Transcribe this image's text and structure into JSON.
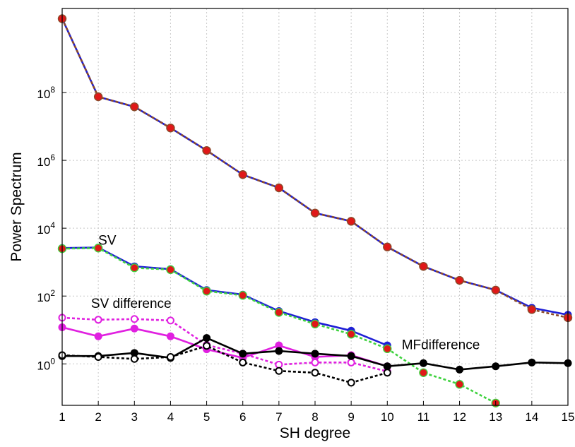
{
  "chart_data": {
    "type": "line",
    "title": "",
    "xlabel": "SH degree",
    "ylabel": "Power Spectrum",
    "y_scale": "log",
    "xlim": [
      1,
      15
    ],
    "ylim": [
      0.06,
      30000000000
    ],
    "grid": true,
    "x_ticks": [
      1,
      2,
      3,
      4,
      5,
      6,
      7,
      8,
      9,
      10,
      11,
      12,
      13,
      14,
      15
    ],
    "y_ticks": [
      {
        "value": 1,
        "base": "10",
        "exp": "0"
      },
      {
        "value": 100,
        "base": "10",
        "exp": "2"
      },
      {
        "value": 10000,
        "base": "10",
        "exp": "4"
      },
      {
        "value": 1000000,
        "base": "10",
        "exp": "6"
      },
      {
        "value": 100000000,
        "base": "10",
        "exp": "8"
      }
    ],
    "annotations": [
      {
        "text": "SV",
        "x": 2.0,
        "y": 3300
      },
      {
        "text": "SV difference",
        "x": 1.8,
        "y": 45
      },
      {
        "text": "MFdifference",
        "x": 10.4,
        "y": 2.7
      }
    ],
    "series": [
      {
        "color": "#1f1fd6",
        "dash": false,
        "marker": "filled",
        "x": [
          1,
          2,
          3,
          4,
          5,
          6,
          7,
          8,
          9,
          10,
          11,
          12,
          13,
          14,
          15
        ],
        "y": [
          15000000000,
          75000000,
          38000000,
          9000000,
          1950000,
          380000,
          155000,
          28000,
          16000,
          2800,
          750,
          290,
          150,
          45,
          28
        ]
      },
      {
        "color": "#8b4a2a",
        "dash": true,
        "marker": "red-dot",
        "x": [
          1,
          2,
          3,
          4,
          5,
          6,
          7,
          8,
          9,
          10,
          11,
          12,
          13,
          14,
          15
        ],
        "y": [
          15000000000,
          75000000,
          38000000,
          9000000,
          1950000,
          380000,
          155000,
          28000,
          16000,
          2800,
          750,
          290,
          150,
          40,
          23
        ]
      },
      {
        "color": "#1f1fd6",
        "dash": false,
        "marker": "filled",
        "x": [
          1,
          2,
          3,
          4,
          5,
          6,
          7,
          8,
          9,
          10
        ],
        "y": [
          2600,
          2700,
          750,
          620,
          150,
          110,
          36,
          17,
          9.5,
          3.5
        ]
      },
      {
        "color": "#3fd23f",
        "dash": true,
        "marker": "red-dot",
        "x": [
          1,
          2,
          3,
          4,
          5,
          6,
          7,
          8,
          9,
          10,
          11,
          12,
          13
        ],
        "y": [
          2500,
          2600,
          680,
          600,
          140,
          105,
          33,
          15,
          7.5,
          2.8,
          0.55,
          0.25,
          0.07
        ]
      },
      {
        "color": "#e020e0",
        "dash": false,
        "marker": "filled",
        "x": [
          1,
          2,
          3,
          4,
          5,
          6,
          7,
          8,
          9,
          10
        ],
        "y": [
          12,
          6.5,
          11,
          6.5,
          2.7,
          1.5,
          3.5,
          1.6,
          1.8,
          0.85
        ]
      },
      {
        "color": "#e020e0",
        "dash": true,
        "marker": "open",
        "x": [
          1,
          2,
          3,
          4,
          5,
          6,
          7,
          8,
          9,
          10
        ],
        "y": [
          23,
          20,
          21,
          19,
          3.6,
          2.0,
          0.95,
          1.1,
          1.1,
          0.6
        ]
      },
      {
        "color": "#000000",
        "dash": false,
        "marker": "filled",
        "x": [
          1,
          2,
          3,
          4,
          5,
          6,
          7,
          8,
          9,
          10,
          11,
          12,
          13,
          14,
          15
        ],
        "y": [
          1.7,
          1.7,
          2.1,
          1.5,
          5.8,
          2.0,
          2.4,
          2.0,
          1.7,
          0.85,
          1.05,
          0.68,
          0.85,
          1.1,
          1.05
        ]
      },
      {
        "color": "#000000",
        "dash": true,
        "marker": "open",
        "x": [
          1,
          2,
          3,
          4,
          5,
          6,
          7,
          8,
          9,
          10
        ],
        "y": [
          1.8,
          1.6,
          1.4,
          1.6,
          3.4,
          1.1,
          0.62,
          0.55,
          0.28,
          0.55
        ]
      }
    ]
  }
}
